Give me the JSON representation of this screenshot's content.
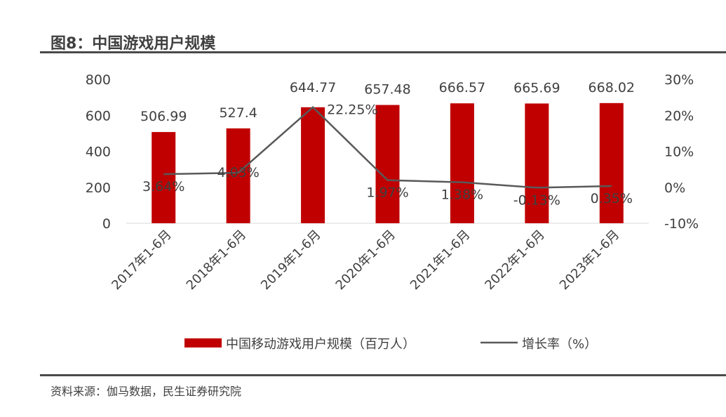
{
  "title": "图8：中国游戏用户规模",
  "source": "资料来源：伽马数据，民生证券研究院",
  "chart_data": {
    "type": "bar",
    "categories": [
      "2017年1-6月",
      "2018年1-6月",
      "2019年1-6月",
      "2020年1-6月",
      "2021年1-6月",
      "2022年1-6月",
      "2023年1-6月"
    ],
    "series": [
      {
        "name": "中国移动游戏用户规模（百万人）",
        "type": "bar",
        "axis": "left",
        "color": "#C00000",
        "values": [
          506.99,
          527.4,
          644.77,
          657.48,
          666.57,
          665.69,
          668.02
        ],
        "labels": [
          "506.99",
          "527.4",
          "644.77",
          "657.48",
          "666.57",
          "665.69",
          "668.02"
        ]
      },
      {
        "name": "增长率（%）",
        "type": "line",
        "axis": "right",
        "color": "#595959",
        "values": [
          3.64,
          4.03,
          22.25,
          1.97,
          1.38,
          -0.13,
          0.35
        ],
        "labels": [
          "3.64%",
          "4.03%",
          "22.25%",
          "1.97%",
          "1.38%",
          "-0.13%",
          "0.35%"
        ]
      }
    ],
    "y_left": {
      "ylim": [
        0,
        800
      ],
      "ticks": [
        "0",
        "200",
        "400",
        "600",
        "800"
      ]
    },
    "y_right": {
      "ylim": [
        -10,
        30
      ],
      "ticks": [
        "-10%",
        "0%",
        "10%",
        "20%",
        "30%"
      ]
    },
    "grid": false,
    "legend": "bottom"
  }
}
